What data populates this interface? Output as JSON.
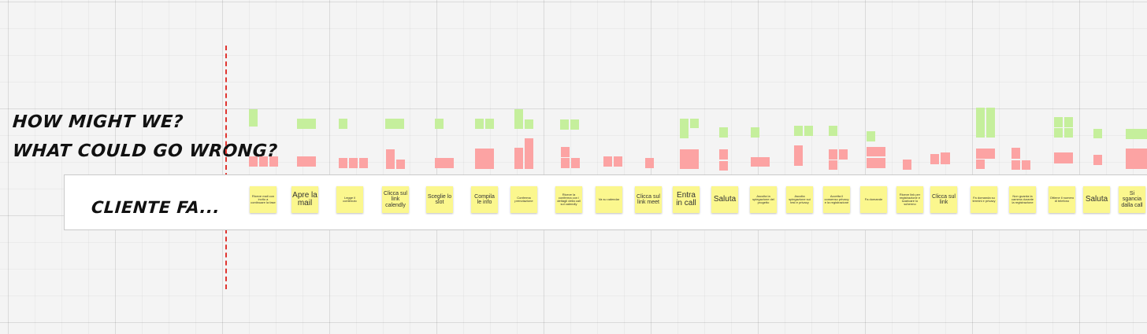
{
  "board": {
    "heading_hmw": "HOW MIGHT WE?",
    "heading_wcgw": "WHAT COULD GO WRONG?",
    "lane_label": "CLIENTE FA..."
  },
  "notes": [
    "Riceve mail con invito a continuare la fase",
    "Apre la mail",
    "Legge il contenuto",
    "Clicca sul link calendly",
    "Sceglie lo slot",
    "Compila le info",
    "Conferma prenotazione",
    "Riceve la conferma con i dettagli della call sul calendly",
    "Va su calendar",
    "Clicca sul link meet",
    "Entra in call",
    "Saluta",
    "Ascolta la spiegazione del progetto",
    "Ascolta spiegazione sui test e privacy",
    "Accetta il consenso privacy e la registrazione",
    "Fa domande",
    "Riceve link per registrazione e scaricare lo schermo",
    "Clicca sul link",
    "Fa domanda su termini e privacy",
    "Non guarda la camera durante la registrazione",
    "Ottiene il numero di telefono",
    "Saluta",
    "Si sgancia dalla call"
  ],
  "colors": {
    "sticky_yellow": "#fbf78e",
    "sticky_green": "#c5ef9c",
    "sticky_red": "#fca3a3",
    "divider_red": "#e0342f"
  }
}
